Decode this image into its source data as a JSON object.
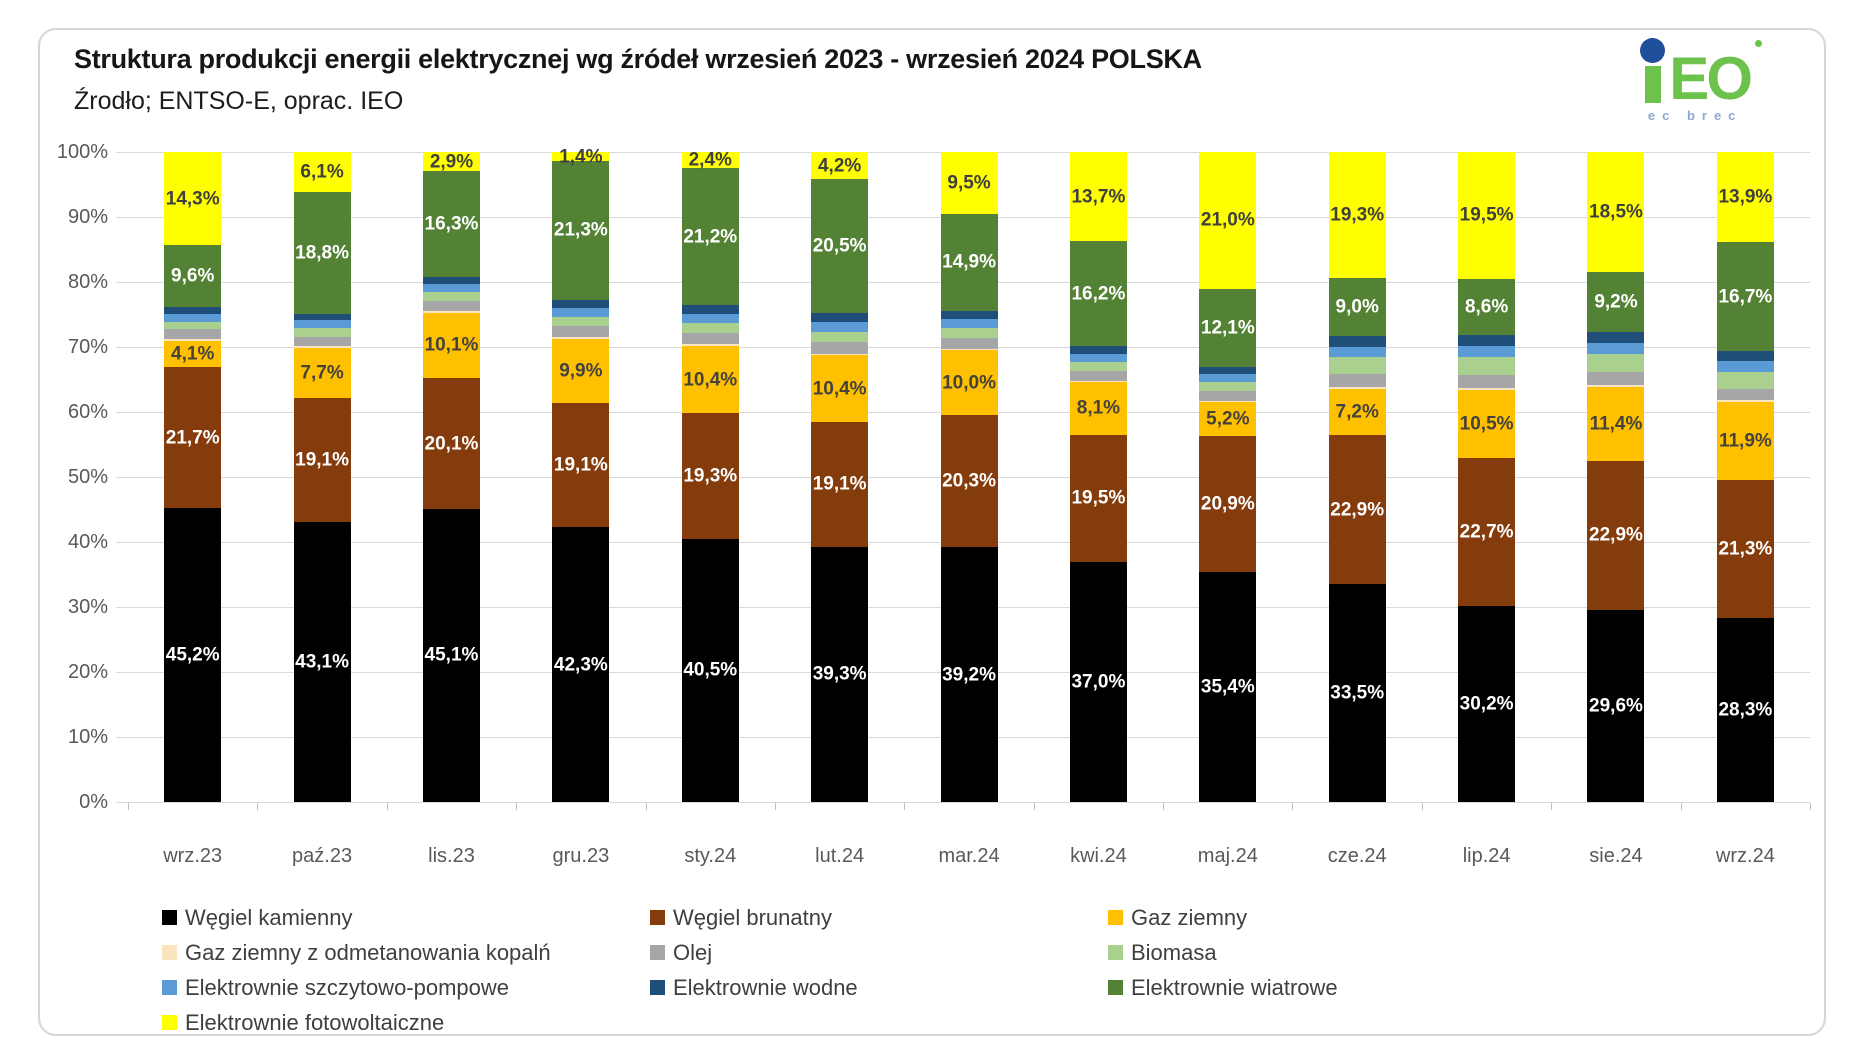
{
  "header": {
    "title": "Struktura produkcji energii elektrycznej wg źródeł wrzesień 2023 - wrzesień 2024 POLSKA",
    "subtitle": "Źrodło; ENTSO-E, oprac. IEO",
    "logo_text": "EO",
    "logo_subtext": "ec brec"
  },
  "colors": {
    "logo_green": "#6CC24A",
    "logo_blue": "#1F4E9B",
    "grid": "#D9D9D9",
    "axis_text": "#595959",
    "legend_text": "#3F3F3F"
  },
  "chart_data": {
    "type": "bar",
    "stacked": true,
    "unit": "%",
    "ylim": [
      0,
      100
    ],
    "grid": true,
    "legend_position": "bottom",
    "legend_columns": 3,
    "y_ticks": [
      "0%",
      "10%",
      "20%",
      "30%",
      "40%",
      "50%",
      "60%",
      "70%",
      "80%",
      "90%",
      "100%"
    ],
    "categories": [
      "wrz.23",
      "paź.23",
      "lis.23",
      "gru.23",
      "sty.24",
      "lut.24",
      "mar.24",
      "kwi.24",
      "maj.24",
      "cze.24",
      "lip.24",
      "sie.24",
      "wrz.24"
    ],
    "series": [
      {
        "name": "Węgiel kamienny",
        "color": "#000000",
        "label_color": "#FFFFFF",
        "show_labels": true,
        "values": [
          45.2,
          43.1,
          45.1,
          42.3,
          40.5,
          39.3,
          39.2,
          37.0,
          35.4,
          33.5,
          30.2,
          29.6,
          28.3
        ]
      },
      {
        "name": "Węgiel brunatny",
        "color": "#843C0C",
        "label_color": "#FFFFFF",
        "show_labels": true,
        "values": [
          21.7,
          19.1,
          20.1,
          19.1,
          19.3,
          19.1,
          20.3,
          19.5,
          20.9,
          22.9,
          22.7,
          22.9,
          21.3
        ]
      },
      {
        "name": "Gaz ziemny",
        "color": "#FFC000",
        "label_color": "#44423D",
        "show_labels": true,
        "values": [
          4.1,
          7.7,
          10.1,
          9.9,
          10.4,
          10.4,
          10.0,
          8.1,
          5.2,
          7.2,
          10.5,
          11.4,
          11.9
        ]
      },
      {
        "name": "Gaz ziemny z odmetanowania kopalń",
        "color": "#FBE5C0",
        "show_labels": false,
        "estimated": true,
        "values": [
          0.2,
          0.2,
          0.2,
          0.2,
          0.2,
          0.2,
          0.2,
          0.2,
          0.2,
          0.3,
          0.3,
          0.3,
          0.3
        ]
      },
      {
        "name": "Olej",
        "color": "#A6A6A6",
        "show_labels": false,
        "estimated": true,
        "values": [
          1.5,
          1.5,
          1.6,
          1.7,
          1.8,
          1.8,
          1.7,
          1.5,
          1.5,
          1.9,
          2.0,
          2.0,
          1.8
        ]
      },
      {
        "name": "Biomasa",
        "color": "#A9D08E",
        "show_labels": false,
        "estimated": true,
        "values": [
          1.2,
          1.3,
          1.3,
          1.4,
          1.5,
          1.5,
          1.5,
          1.4,
          1.4,
          2.6,
          2.7,
          2.7,
          2.6
        ]
      },
      {
        "name": "Elektrownie szczytowo-pompowe",
        "color": "#5B9BD5",
        "show_labels": false,
        "estimated": true,
        "values": [
          1.2,
          1.2,
          1.3,
          1.4,
          1.4,
          1.5,
          1.4,
          1.3,
          1.3,
          1.6,
          1.7,
          1.7,
          1.6
        ]
      },
      {
        "name": "Elektrownie wodne",
        "color": "#1F4E79",
        "show_labels": false,
        "estimated": true,
        "values": [
          1.0,
          1.0,
          1.1,
          1.3,
          1.3,
          1.5,
          1.3,
          1.1,
          1.0,
          1.7,
          1.8,
          1.7,
          1.6
        ]
      },
      {
        "name": "Elektrownie wiatrowe",
        "color": "#548235",
        "label_color": "#FFFFFF",
        "show_labels": true,
        "values": [
          9.6,
          18.8,
          16.3,
          21.3,
          21.2,
          20.5,
          14.9,
          16.2,
          12.1,
          9.0,
          8.6,
          9.2,
          16.7
        ]
      },
      {
        "name": "Elektrownie fotowoltaiczne",
        "color": "#FFFF00",
        "label_color": "#3F3F3F",
        "show_labels": true,
        "values": [
          14.3,
          6.1,
          2.9,
          1.4,
          2.4,
          4.2,
          9.5,
          13.7,
          21.0,
          19.3,
          19.5,
          18.5,
          13.9
        ]
      }
    ]
  }
}
